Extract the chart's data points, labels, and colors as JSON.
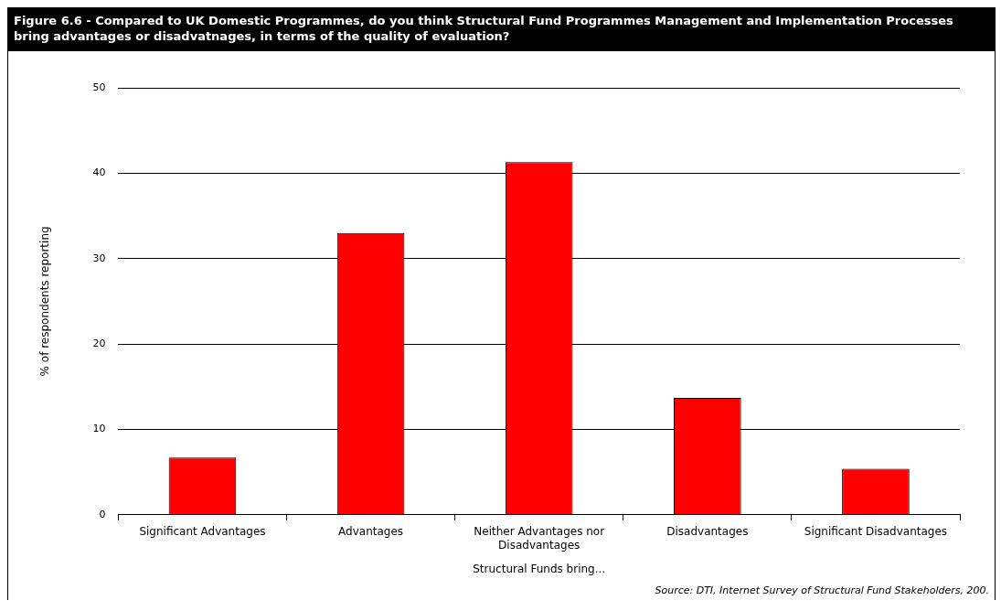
{
  "chart_data": {
    "type": "bar",
    "title": "Figure 6.6 - Compared to UK Domestic Programmes, do you think Structural Fund Programmes Management and Implementation Processes bring advantages or disadvatnages, in terms of the quality of evaluation?",
    "categories": [
      "Significant Advantages",
      "Advantages",
      "Neither Advantages nor Disadvantages",
      "Disadvantages",
      "Significant Disadvantages"
    ],
    "values": [
      6.7,
      33.0,
      41.3,
      13.7,
      5.4
    ],
    "color": "#ff0000",
    "xlabel": "Structural Funds bring...",
    "ylabel": "% of respondents reporting",
    "ylim": [
      0,
      50
    ],
    "yticks": [
      0,
      10,
      20,
      30,
      40,
      50
    ],
    "grid": "y",
    "legend": false,
    "annotations": [
      "Source: DTI, Internet Survey of Structural Fund Stakeholders, 200."
    ]
  }
}
